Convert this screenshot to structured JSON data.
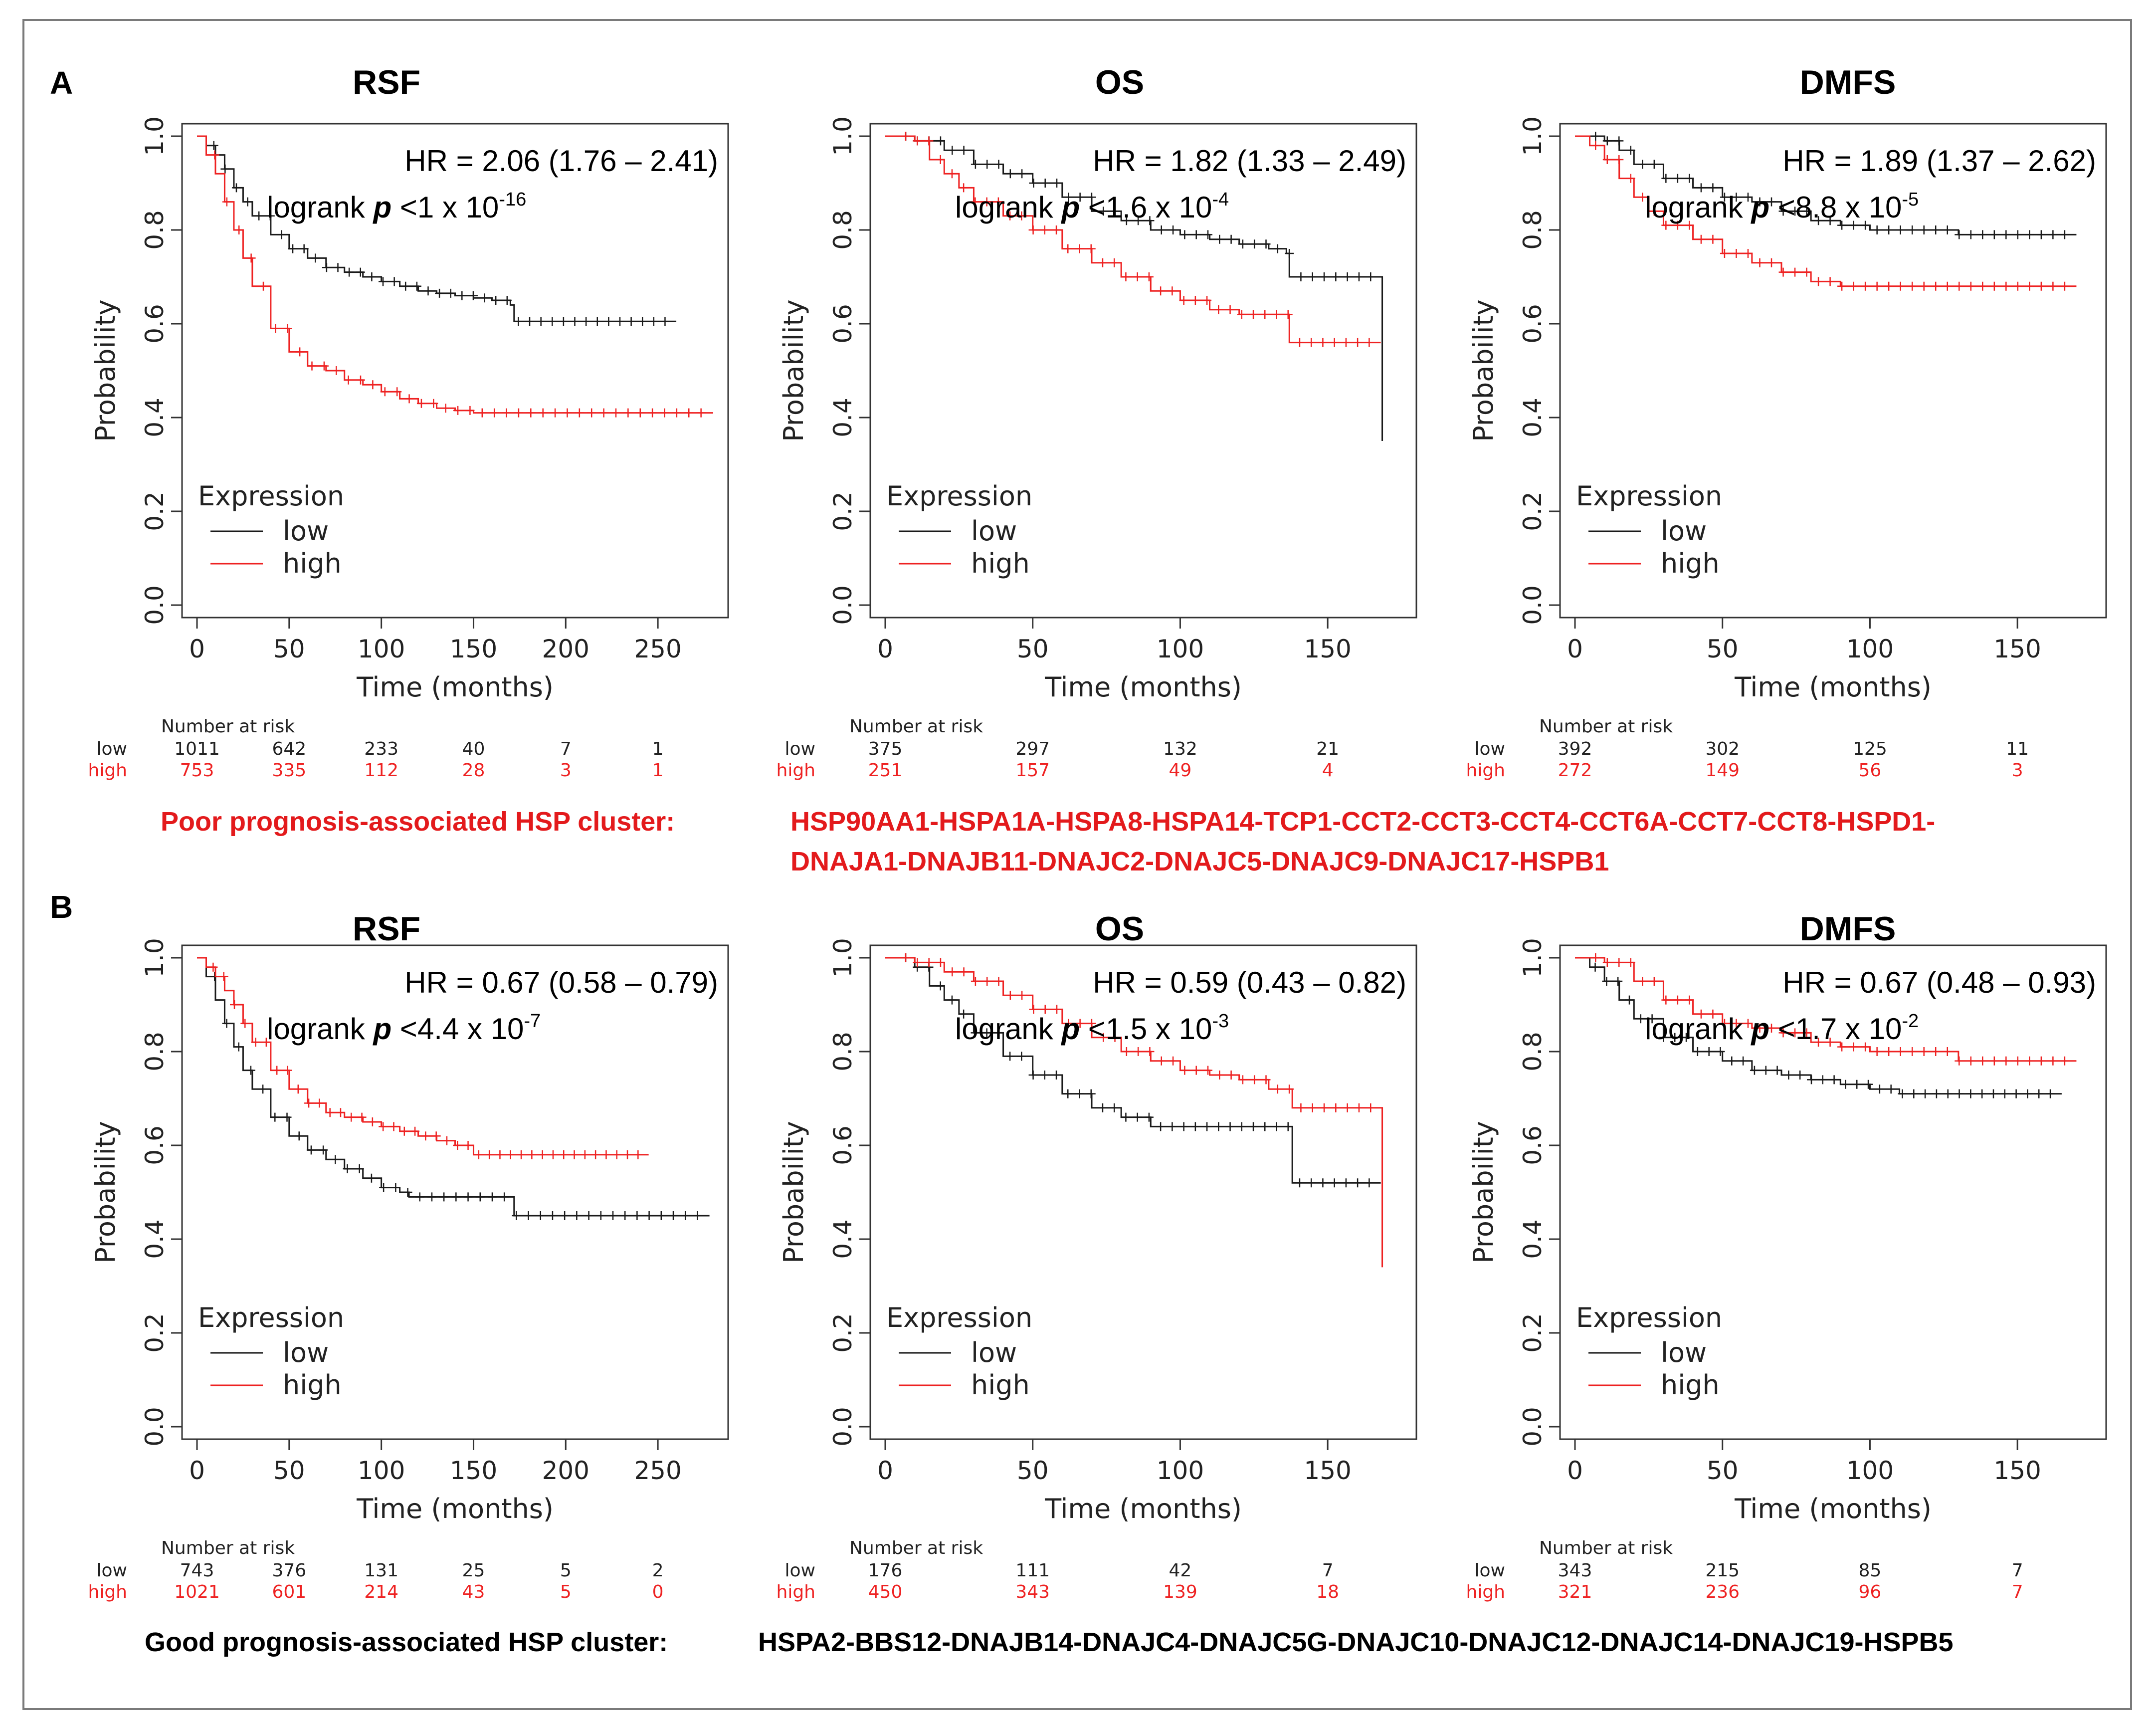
{
  "colors": {
    "low": "#1a1a1a",
    "high": "#ee2222",
    "cluster_poor": "#e31a1c",
    "cluster_good": "#000000"
  },
  "panels": [
    {
      "letter": "A",
      "cluster": {
        "label": "Poor prognosis-associated HSP cluster:",
        "genes_line1": "HSP90AA1-HSPA1A-HSPA8-HSPA14-TCP1-CCT2-CCT3-CCT4-CCT6A-CCT7-CCT8-HSPD1-",
        "genes_line2": "DNAJA1-DNAJB11-DNAJC2-DNAJC5-DNAJC9-DNAJC17-HSPB1",
        "color": "red"
      }
    },
    {
      "letter": "B",
      "cluster": {
        "label": "Good prognosis-associated HSP cluster:",
        "genes_line1": "HSPA2-BBS12-DNAJB14-DNAJC4-DNAJC5G-DNAJC10-DNAJC12-DNAJC14-DNAJC19-HSPB5",
        "genes_line2": "",
        "color": "black"
      }
    }
  ],
  "chart_data": [
    {
      "id": "A-RSF",
      "type": "line",
      "title": "RSF",
      "hr_text": "HR = 2.06 (1.76 – 2.41)",
      "logrank_prefix": "logrank ",
      "logrank_p": "p",
      "logrank_mid": " <1 x 10",
      "logrank_exp": "-16",
      "xlabel": "Time (months)",
      "ylabel": "Probability",
      "xlim": [
        0,
        280
      ],
      "ylim": [
        0,
        1
      ],
      "xticks": [
        0,
        50,
        100,
        150,
        200,
        250
      ],
      "yticks": [
        0.0,
        0.2,
        0.4,
        0.6,
        0.8,
        1.0
      ],
      "legend_title": "Expression",
      "legend": [
        "low",
        "high"
      ],
      "series": [
        {
          "name": "low",
          "x": [
            0,
            5,
            10,
            15,
            20,
            25,
            30,
            40,
            50,
            60,
            70,
            80,
            90,
            100,
            110,
            120,
            130,
            140,
            150,
            160,
            170,
            172,
            200,
            220,
            260
          ],
          "values": [
            1.0,
            0.98,
            0.96,
            0.93,
            0.89,
            0.86,
            0.83,
            0.79,
            0.76,
            0.74,
            0.72,
            0.71,
            0.7,
            0.69,
            0.68,
            0.67,
            0.665,
            0.66,
            0.655,
            0.65,
            0.64,
            0.605,
            0.605,
            0.605,
            0.605
          ]
        },
        {
          "name": "high",
          "x": [
            0,
            5,
            10,
            15,
            20,
            25,
            30,
            40,
            50,
            60,
            70,
            80,
            90,
            100,
            110,
            120,
            130,
            140,
            150,
            180,
            220,
            250,
            280
          ],
          "values": [
            1.0,
            0.96,
            0.92,
            0.86,
            0.8,
            0.74,
            0.68,
            0.59,
            0.54,
            0.51,
            0.5,
            0.48,
            0.47,
            0.455,
            0.44,
            0.43,
            0.42,
            0.415,
            0.41,
            0.41,
            0.41,
            0.41,
            0.41
          ]
        }
      ],
      "risk": {
        "title": "Number at risk",
        "ticks": [
          0,
          50,
          100,
          150,
          200,
          250
        ],
        "low": [
          "1011",
          "642",
          "233",
          "40",
          "7",
          "1"
        ],
        "high": [
          "753",
          "335",
          "112",
          "28",
          "3",
          "1"
        ]
      }
    },
    {
      "id": "A-OS",
      "type": "line",
      "title": "OS",
      "hr_text": "HR = 1.82 (1.33 – 2.49)",
      "logrank_prefix": "logrank ",
      "logrank_p": "p",
      "logrank_mid": " <1.6 x 10",
      "logrank_exp": "-4",
      "xlabel": "Time (months)",
      "ylabel": "Probability",
      "xlim": [
        0,
        175
      ],
      "ylim": [
        0,
        1
      ],
      "xticks": [
        0,
        50,
        100,
        150
      ],
      "yticks": [
        0.0,
        0.2,
        0.4,
        0.6,
        0.8,
        1.0
      ],
      "legend_title": "Expression",
      "legend": [
        "low",
        "high"
      ],
      "series": [
        {
          "name": "low",
          "x": [
            0,
            10,
            20,
            30,
            40,
            50,
            60,
            70,
            80,
            90,
            100,
            110,
            120,
            130,
            136,
            137,
            150,
            160,
            168,
            168.5
          ],
          "values": [
            1.0,
            0.99,
            0.97,
            0.94,
            0.92,
            0.9,
            0.87,
            0.84,
            0.82,
            0.8,
            0.79,
            0.78,
            0.77,
            0.76,
            0.75,
            0.7,
            0.7,
            0.7,
            0.7,
            0.35
          ]
        },
        {
          "name": "high",
          "x": [
            0,
            10,
            15,
            20,
            25,
            30,
            40,
            50,
            60,
            70,
            80,
            90,
            100,
            110,
            120,
            130,
            136,
            137,
            150,
            168
          ],
          "values": [
            1.0,
            0.99,
            0.95,
            0.92,
            0.89,
            0.86,
            0.83,
            0.8,
            0.76,
            0.73,
            0.7,
            0.67,
            0.65,
            0.63,
            0.62,
            0.62,
            0.62,
            0.56,
            0.56,
            0.56
          ]
        }
      ],
      "risk": {
        "title": "Number at risk",
        "ticks": [
          0,
          50,
          100,
          150
        ],
        "low": [
          "375",
          "297",
          "132",
          "21"
        ],
        "high": [
          "251",
          "157",
          "49",
          "4"
        ]
      }
    },
    {
      "id": "A-DMFS",
      "type": "line",
      "title": "DMFS",
      "hr_text": "HR = 1.89 (1.37 – 2.62)",
      "logrank_prefix": "logrank ",
      "logrank_p": "p",
      "logrank_mid": " <8.8 x 10",
      "logrank_exp": "-5",
      "xlabel": "Time (months)",
      "ylabel": "Probability",
      "xlim": [
        0,
        175
      ],
      "ylim": [
        0,
        1
      ],
      "xticks": [
        0,
        50,
        100,
        150
      ],
      "yticks": [
        0.0,
        0.2,
        0.4,
        0.6,
        0.8,
        1.0
      ],
      "legend_title": "Expression",
      "legend": [
        "low",
        "high"
      ],
      "series": [
        {
          "name": "low",
          "x": [
            0,
            10,
            15,
            20,
            30,
            40,
            50,
            60,
            70,
            80,
            90,
            100,
            110,
            120,
            130,
            140,
            150,
            170
          ],
          "values": [
            1.0,
            0.99,
            0.97,
            0.94,
            0.91,
            0.89,
            0.87,
            0.86,
            0.84,
            0.82,
            0.81,
            0.8,
            0.8,
            0.8,
            0.79,
            0.79,
            0.79,
            0.79
          ]
        },
        {
          "name": "high",
          "x": [
            0,
            5,
            10,
            15,
            20,
            25,
            30,
            40,
            50,
            60,
            70,
            80,
            90,
            100,
            130,
            170
          ],
          "values": [
            1.0,
            0.98,
            0.95,
            0.91,
            0.87,
            0.84,
            0.81,
            0.78,
            0.75,
            0.73,
            0.71,
            0.69,
            0.68,
            0.68,
            0.68,
            0.68
          ]
        }
      ],
      "risk": {
        "title": "Number at risk",
        "ticks": [
          0,
          50,
          100,
          150
        ],
        "low": [
          "392",
          "302",
          "125",
          "11"
        ],
        "high": [
          "272",
          "149",
          "56",
          "3"
        ]
      }
    },
    {
      "id": "B-RSF",
      "type": "line",
      "title": "RSF",
      "hr_text": "HR = 0.67 (0.58 – 0.79)",
      "logrank_prefix": "logrank ",
      "logrank_p": "p",
      "logrank_mid": " <4.4 x 10",
      "logrank_exp": "-7",
      "xlabel": "Time (months)",
      "ylabel": "Probability",
      "xlim": [
        0,
        280
      ],
      "ylim": [
        0,
        1
      ],
      "xticks": [
        0,
        50,
        100,
        150,
        200,
        250
      ],
      "yticks": [
        0.0,
        0.2,
        0.4,
        0.6,
        0.8,
        1.0
      ],
      "legend_title": "Expression",
      "legend": [
        "low",
        "high"
      ],
      "series": [
        {
          "name": "low",
          "x": [
            0,
            5,
            10,
            15,
            20,
            25,
            30,
            40,
            50,
            60,
            70,
            80,
            90,
            100,
            110,
            115,
            170,
            172,
            200,
            250,
            278
          ],
          "values": [
            1.0,
            0.96,
            0.91,
            0.86,
            0.81,
            0.76,
            0.72,
            0.66,
            0.62,
            0.59,
            0.57,
            0.55,
            0.53,
            0.51,
            0.5,
            0.49,
            0.49,
            0.45,
            0.45,
            0.45,
            0.45
          ]
        },
        {
          "name": "high",
          "x": [
            0,
            5,
            10,
            15,
            20,
            25,
            30,
            40,
            50,
            60,
            70,
            80,
            90,
            100,
            110,
            120,
            130,
            140,
            150,
            200,
            245
          ],
          "values": [
            1.0,
            0.98,
            0.96,
            0.93,
            0.9,
            0.86,
            0.82,
            0.76,
            0.72,
            0.69,
            0.67,
            0.66,
            0.65,
            0.64,
            0.63,
            0.62,
            0.61,
            0.6,
            0.58,
            0.58,
            0.58
          ]
        }
      ],
      "risk": {
        "title": "Number at risk",
        "ticks": [
          0,
          50,
          100,
          150,
          200,
          250
        ],
        "low": [
          "743",
          "376",
          "131",
          "25",
          "5",
          "2"
        ],
        "high": [
          "1021",
          "601",
          "214",
          "43",
          "5",
          "0"
        ]
      }
    },
    {
      "id": "B-OS",
      "type": "line",
      "title": "OS",
      "hr_text": "HR = 0.59 (0.43 – 0.82)",
      "logrank_prefix": "logrank ",
      "logrank_p": "p",
      "logrank_mid": " <1.5 x 10",
      "logrank_exp": "-3",
      "xlabel": "Time (months)",
      "ylabel": "Probability",
      "xlim": [
        0,
        175
      ],
      "ylim": [
        0,
        1
      ],
      "xticks": [
        0,
        50,
        100,
        150
      ],
      "yticks": [
        0.0,
        0.2,
        0.4,
        0.6,
        0.8,
        1.0
      ],
      "legend_title": "Expression",
      "legend": [
        "low",
        "high"
      ],
      "series": [
        {
          "name": "low",
          "x": [
            0,
            10,
            15,
            20,
            25,
            30,
            40,
            50,
            60,
            70,
            80,
            90,
            100,
            110,
            120,
            130,
            137,
            138,
            150,
            168
          ],
          "values": [
            1.0,
            0.98,
            0.94,
            0.91,
            0.88,
            0.84,
            0.79,
            0.75,
            0.71,
            0.68,
            0.66,
            0.64,
            0.64,
            0.64,
            0.64,
            0.64,
            0.64,
            0.52,
            0.52,
            0.52
          ]
        },
        {
          "name": "high",
          "x": [
            0,
            10,
            20,
            30,
            40,
            50,
            60,
            70,
            80,
            90,
            100,
            110,
            120,
            130,
            137,
            138,
            150,
            168,
            168.5
          ],
          "values": [
            1.0,
            0.99,
            0.97,
            0.95,
            0.92,
            0.89,
            0.86,
            0.83,
            0.8,
            0.78,
            0.76,
            0.75,
            0.74,
            0.72,
            0.72,
            0.68,
            0.68,
            0.68,
            0.34
          ]
        }
      ],
      "risk": {
        "title": "Number at risk",
        "ticks": [
          0,
          50,
          100,
          150
        ],
        "low": [
          "176",
          "111",
          "42",
          "7"
        ],
        "high": [
          "450",
          "343",
          "139",
          "18"
        ]
      }
    },
    {
      "id": "B-DMFS",
      "type": "line",
      "title": "DMFS",
      "hr_text": "HR = 0.67 (0.48 – 0.93)",
      "logrank_prefix": "logrank ",
      "logrank_p": "p",
      "logrank_mid": " <1.7 x 10",
      "logrank_exp": "-2",
      "xlabel": "Time (months)",
      "ylabel": "Probability",
      "xlim": [
        0,
        175
      ],
      "ylim": [
        0,
        1
      ],
      "xticks": [
        0,
        50,
        100,
        150
      ],
      "yticks": [
        0.0,
        0.2,
        0.4,
        0.6,
        0.8,
        1.0
      ],
      "legend_title": "Expression",
      "legend": [
        "low",
        "high"
      ],
      "series": [
        {
          "name": "low",
          "x": [
            0,
            5,
            10,
            15,
            20,
            30,
            40,
            50,
            60,
            70,
            80,
            90,
            100,
            110,
            130,
            165
          ],
          "values": [
            1.0,
            0.98,
            0.95,
            0.91,
            0.87,
            0.83,
            0.8,
            0.78,
            0.76,
            0.75,
            0.74,
            0.73,
            0.72,
            0.71,
            0.71,
            0.71
          ]
        },
        {
          "name": "high",
          "x": [
            0,
            10,
            20,
            30,
            40,
            50,
            60,
            70,
            80,
            90,
            100,
            110,
            120,
            130,
            170
          ],
          "values": [
            1.0,
            0.99,
            0.95,
            0.91,
            0.88,
            0.86,
            0.85,
            0.84,
            0.82,
            0.81,
            0.8,
            0.8,
            0.8,
            0.78,
            0.78
          ]
        }
      ],
      "risk": {
        "title": "Number at risk",
        "ticks": [
          0,
          50,
          100,
          150
        ],
        "low": [
          "343",
          "215",
          "85",
          "7"
        ],
        "high": [
          "321",
          "236",
          "96",
          "7"
        ]
      }
    }
  ]
}
